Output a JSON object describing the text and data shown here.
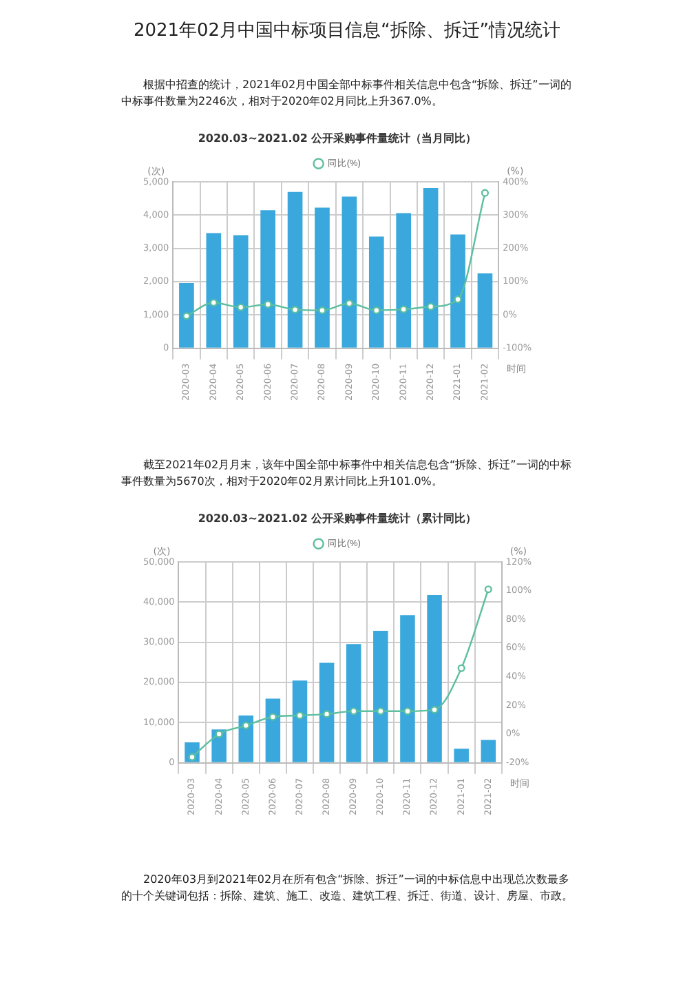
{
  "chart_data": [
    {
      "type": "bar",
      "title": "2020.03~2021.02 公开采购事件量统计（当月同比）",
      "annotations": [
        "2021年02月中国中标项目信息“拆除、拆迁”情况统计",
        "根据中招查的统计，2021年02月中国全部中标事件相关信息中包含“拆除、拆迁”一词的中标事件数量为2246次，相对于2020年02月同比上升367.0%。"
      ],
      "ylabel": "(次)",
      "y2label": "(%)",
      "xlabel": "时间",
      "categories": [
        "2020-03",
        "2020-04",
        "2020-05",
        "2020-06",
        "2020-07",
        "2020-08",
        "2020-09",
        "2020-10",
        "2020-11",
        "2020-12",
        "2021-01",
        "2021-02"
      ],
      "series": [
        {
          "type": "bar",
          "color": "#3aa8dc",
          "values": [
            1960,
            3460,
            3400,
            4150,
            4700,
            4230,
            4560,
            3360,
            4060,
            4820,
            3420,
            2250
          ]
        },
        {
          "type": "line",
          "name": "同比(%)",
          "axis": "y2",
          "color": "#5cbf9f",
          "values": [
            -3,
            37,
            23,
            32,
            16,
            14,
            35,
            14,
            17,
            25,
            47,
            367
          ]
        }
      ],
      "ylim": [
        0,
        5000
      ],
      "yticks": [
        0,
        {
          "value": 1000,
          "label": "1,000"
        },
        {
          "value": 2000,
          "label": "2,000"
        },
        {
          "value": 3000,
          "label": "3,000"
        },
        {
          "value": 4000,
          "label": "4,000"
        },
        {
          "value": 5000,
          "label": "5,000"
        }
      ],
      "y2lim": [
        -100,
        400
      ],
      "y2ticks": [
        {
          "value": -100,
          "label": "-100%"
        },
        {
          "value": 0,
          "label": "0%"
        },
        {
          "value": 100,
          "label": "100%"
        },
        {
          "value": 200,
          "label": "200%"
        },
        {
          "value": 300,
          "label": "300%"
        },
        {
          "value": 400,
          "label": "400%"
        }
      ],
      "grid": true,
      "legend": "top",
      "marker": "circle",
      "line_style": "solid"
    },
    {
      "type": "bar",
      "title": "2020.03~2021.02 公开采购事件量统计（累计同比）",
      "annotations": [
        "截至2021年02月月末，该年中国全部中标事件中相关信息包含“拆除、拆迁”一词的中标事件数量为5670次，相对于2020年02月累计同比上升101.0%。"
      ],
      "ylabel": "(次)",
      "y2label": "(%)",
      "xlabel": "时间",
      "categories": [
        "2020-03",
        "2020-04",
        "2020-05",
        "2020-06",
        "2020-07",
        "2020-08",
        "2020-09",
        "2020-10",
        "2020-11",
        "2020-12",
        "2021-01",
        "2021-02"
      ],
      "series": [
        {
          "type": "bar",
          "color": "#3aa8dc",
          "values": [
            5100,
            8300,
            11800,
            16000,
            20500,
            24900,
            29600,
            32900,
            36800,
            41800,
            3500,
            5700
          ]
        },
        {
          "type": "line",
          "name": "同比(%)",
          "axis": "y2",
          "color": "#5cbf9f",
          "values": [
            -16,
            0,
            6,
            12,
            13,
            14,
            16,
            16,
            16,
            17,
            46,
            101
          ]
        }
      ],
      "ylim": [
        0,
        50000
      ],
      "yticks": [
        0,
        {
          "value": 10000,
          "label": "10,000"
        },
        {
          "value": 20000,
          "label": "20,000"
        },
        {
          "value": 30000,
          "label": "30,000"
        },
        {
          "value": 40000,
          "label": "40,000"
        },
        {
          "value": 50000,
          "label": "50,000"
        }
      ],
      "y2lim": [
        -20,
        120
      ],
      "y2ticks": [
        {
          "value": -20,
          "label": "-20%"
        },
        {
          "value": 0,
          "label": "0%"
        },
        {
          "value": 20,
          "label": "20%"
        },
        {
          "value": 40,
          "label": "40%"
        },
        {
          "value": 60,
          "label": "60%"
        },
        {
          "value": 80,
          "label": "80%"
        },
        {
          "value": 100,
          "label": "100%"
        },
        {
          "value": 120,
          "label": "120%"
        }
      ],
      "grid": true,
      "legend": "top",
      "marker": "circle",
      "line_style": "solid"
    },
    {
      "type": "other",
      "annotations": [
        "2020年03月到2021年02月在所有包含“拆除、拆迁”一词的中标信息中出现总次数最多的十个关键词包括：拆除、建筑、施工、改造、建筑工程、拆迁、街道、设计、房屋、市政。"
      ]
    }
  ]
}
